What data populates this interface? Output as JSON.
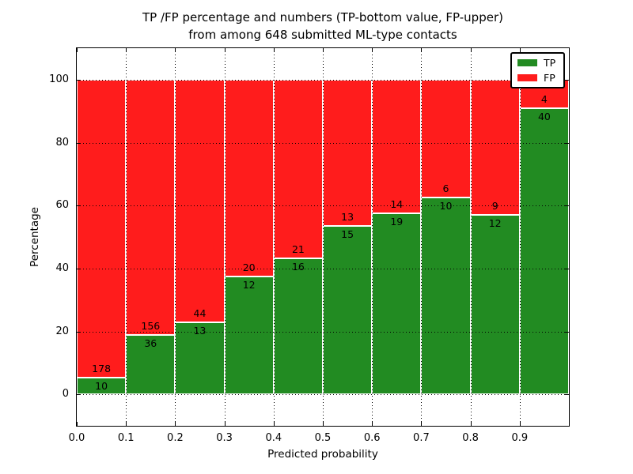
{
  "chart_data": {
    "type": "bar",
    "stacked": true,
    "normalized": "percent",
    "title_lines": [
      "TP /FP percentage and numbers (TP-bottom value, FP-upper)",
      "from among 648 submitted ML-type contacts"
    ],
    "total_contacts": 648,
    "xlabel": "Predicted probability",
    "ylabel": "Percentage",
    "xlim": [
      0.0,
      1.0
    ],
    "ylim": [
      -10,
      110
    ],
    "bin_width": 0.1,
    "grid": true,
    "x_tick_labels": [
      "0.0",
      "0.1",
      "0.2",
      "0.3",
      "0.4",
      "0.5",
      "0.6",
      "0.7",
      "0.8",
      "0.9"
    ],
    "x_tick_values": [
      0.0,
      0.1,
      0.2,
      0.3,
      0.4,
      0.5,
      0.6,
      0.7,
      0.8,
      0.9
    ],
    "y_tick_labels": [
      "0",
      "20",
      "40",
      "60",
      "80",
      "100"
    ],
    "y_tick_values": [
      0,
      20,
      40,
      60,
      80,
      100
    ],
    "series": [
      {
        "name": "TP",
        "color": "#228B22",
        "position": "bottom",
        "counts": [
          10,
          36,
          13,
          12,
          16,
          15,
          19,
          10,
          12,
          40
        ]
      },
      {
        "name": "FP",
        "color": "#FF1C1C",
        "position": "top",
        "counts": [
          178,
          156,
          44,
          20,
          21,
          13,
          14,
          6,
          9,
          4
        ]
      }
    ],
    "tp_percentages": [
      5.32,
      18.75,
      22.81,
      37.5,
      43.24,
      53.57,
      57.58,
      62.5,
      57.14,
      90.91
    ],
    "legend": {
      "position": "upper right",
      "entries": [
        "TP",
        "FP"
      ]
    }
  }
}
